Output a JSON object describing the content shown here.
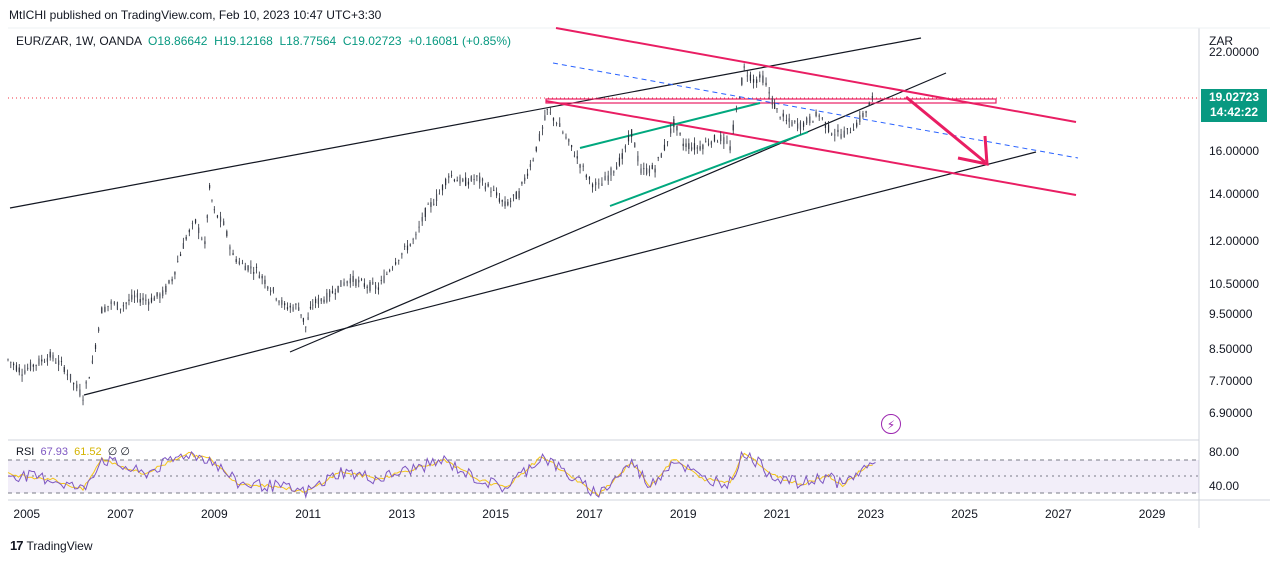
{
  "header": {
    "published": "MtICHI published on TradingView.com, Feb 10, 2023 10:47 UTC+3:30"
  },
  "legend": {
    "symbol": "EUR/ZAR, 1W, OANDA",
    "open": "O18.86642",
    "high": "H19.12168",
    "low": "L18.77564",
    "close": "C19.02723",
    "change": "+0.16081 (+0.85%)"
  },
  "rsi_legend": {
    "name": "RSI",
    "value": "67.93",
    "ma": "61.52",
    "extra": "∅ ∅"
  },
  "price_axis": {
    "currency": "ZAR",
    "last_price": "19.02723",
    "countdown": "14:42:22",
    "ticks": [
      "22.00000",
      "16.00000",
      "14.00000",
      "12.00000",
      "10.50000",
      "9.50000",
      "8.50000",
      "7.70000",
      "6.90000"
    ]
  },
  "rsi_axis": {
    "ticks": [
      "80.00",
      "40.00"
    ]
  },
  "time_axis": {
    "ticks": [
      "2005",
      "2007",
      "2009",
      "2011",
      "2013",
      "2015",
      "2017",
      "2019",
      "2021",
      "2023",
      "2025",
      "2027",
      "2029"
    ]
  },
  "footer": {
    "brand": "TradingView"
  },
  "colors": {
    "up": "#089981",
    "down": "#f23645",
    "candle": "#2a2e39",
    "trend_black": "#131722",
    "channel_pink": "#e91e63",
    "rising_green": "#00a87e",
    "dashed_blue": "#2962ff",
    "rsi": "#7e57c2",
    "rsi_ma": "#f5c518"
  },
  "chart_data": {
    "type": "line",
    "title": "EUR/ZAR, 1W, OANDA",
    "xlabel": "",
    "ylabel": "",
    "scale": "log",
    "x_range": [
      2004.6,
      2030
    ],
    "y_range": [
      6.3,
      23.5
    ],
    "series": [
      {
        "name": "EUR/ZAR",
        "points": [
          [
            2004.6,
            8.1
          ],
          [
            2004.9,
            7.8
          ],
          [
            2005.2,
            8.0
          ],
          [
            2005.5,
            8.2
          ],
          [
            2005.8,
            7.9
          ],
          [
            2006.0,
            7.5
          ],
          [
            2006.2,
            7.2
          ],
          [
            2006.4,
            8.0
          ],
          [
            2006.6,
            9.5
          ],
          [
            2006.8,
            9.7
          ],
          [
            2007.0,
            9.6
          ],
          [
            2007.3,
            9.9
          ],
          [
            2007.6,
            9.8
          ],
          [
            2007.9,
            10.0
          ],
          [
            2008.1,
            10.5
          ],
          [
            2008.4,
            12.0
          ],
          [
            2008.6,
            12.6
          ],
          [
            2008.8,
            11.7
          ],
          [
            2008.9,
            14.0
          ],
          [
            2009.0,
            13.0
          ],
          [
            2009.2,
            12.5
          ],
          [
            2009.4,
            11.3
          ],
          [
            2009.6,
            11.0
          ],
          [
            2009.9,
            10.8
          ],
          [
            2010.2,
            10.2
          ],
          [
            2010.5,
            9.6
          ],
          [
            2010.8,
            9.6
          ],
          [
            2010.95,
            9.0
          ],
          [
            2011.1,
            9.7
          ],
          [
            2011.4,
            9.9
          ],
          [
            2011.7,
            10.3
          ],
          [
            2011.9,
            10.5
          ],
          [
            2012.2,
            10.3
          ],
          [
            2012.5,
            10.2
          ],
          [
            2012.8,
            11.0
          ],
          [
            2013.0,
            11.4
          ],
          [
            2013.3,
            12.0
          ],
          [
            2013.5,
            13.0
          ],
          [
            2013.8,
            13.8
          ],
          [
            2014.0,
            14.7
          ],
          [
            2014.3,
            14.3
          ],
          [
            2014.6,
            14.5
          ],
          [
            2014.9,
            14.0
          ],
          [
            2015.2,
            13.3
          ],
          [
            2015.5,
            13.8
          ],
          [
            2015.8,
            15.5
          ],
          [
            2016.0,
            17.0
          ],
          [
            2016.1,
            18.0
          ],
          [
            2016.3,
            17.4
          ],
          [
            2016.5,
            16.5
          ],
          [
            2016.8,
            15.2
          ],
          [
            2017.0,
            14.4
          ],
          [
            2017.2,
            14.1
          ],
          [
            2017.4,
            14.6
          ],
          [
            2017.7,
            15.5
          ],
          [
            2017.9,
            16.8
          ],
          [
            2018.1,
            14.8
          ],
          [
            2018.4,
            15.0
          ],
          [
            2018.6,
            16.0
          ],
          [
            2018.8,
            17.3
          ],
          [
            2019.0,
            16.2
          ],
          [
            2019.3,
            16.0
          ],
          [
            2019.6,
            16.4
          ],
          [
            2019.8,
            16.5
          ],
          [
            2020.0,
            16.0
          ],
          [
            2020.2,
            19.0
          ],
          [
            2020.3,
            20.6
          ],
          [
            2020.5,
            19.9
          ],
          [
            2020.7,
            20.0
          ],
          [
            2020.9,
            18.6
          ],
          [
            2021.0,
            18.0
          ],
          [
            2021.2,
            17.4
          ],
          [
            2021.5,
            17.2
          ],
          [
            2021.7,
            17.5
          ],
          [
            2021.9,
            17.8
          ],
          [
            2022.1,
            17.0
          ],
          [
            2022.3,
            16.7
          ],
          [
            2022.5,
            16.8
          ],
          [
            2022.7,
            17.3
          ],
          [
            2022.9,
            18.0
          ],
          [
            2023.1,
            19.02723
          ]
        ]
      },
      {
        "name": "RSI",
        "values_range": [
          30,
          85
        ],
        "points": [
          [
            2004.6,
            55
          ],
          [
            2005.5,
            50
          ],
          [
            2006.2,
            38
          ],
          [
            2006.6,
            72
          ],
          [
            2007.5,
            55
          ],
          [
            2008.4,
            78
          ],
          [
            2008.9,
            72
          ],
          [
            2009.5,
            45
          ],
          [
            2010.3,
            42
          ],
          [
            2010.95,
            35
          ],
          [
            2011.7,
            58
          ],
          [
            2012.5,
            50
          ],
          [
            2013.3,
            62
          ],
          [
            2013.9,
            70
          ],
          [
            2014.6,
            50
          ],
          [
            2015.2,
            40
          ],
          [
            2016.0,
            75
          ],
          [
            2016.8,
            45
          ],
          [
            2017.2,
            33
          ],
          [
            2017.9,
            68
          ],
          [
            2018.3,
            42
          ],
          [
            2018.8,
            72
          ],
          [
            2019.4,
            50
          ],
          [
            2020.0,
            46
          ],
          [
            2020.3,
            80
          ],
          [
            2020.9,
            54
          ],
          [
            2021.5,
            44
          ],
          [
            2022.1,
            54
          ],
          [
            2022.4,
            42
          ],
          [
            2022.8,
            60
          ],
          [
            2023.1,
            67.93
          ]
        ]
      }
    ]
  }
}
